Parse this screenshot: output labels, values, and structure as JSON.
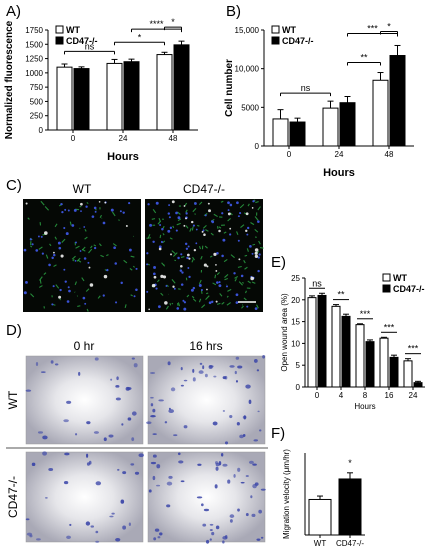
{
  "panels": {
    "A": "A)",
    "B": "B)",
    "C": "C)",
    "D": "D)",
    "E": "E)",
    "F": "F)"
  },
  "colors": {
    "wt_fill": "#ffffff",
    "ko_fill": "#000000",
    "stroke": "#000000",
    "scratch_bg": "#c9c9d2",
    "scratch_cell": "#3a45a8",
    "fluor_bg": "#050805",
    "fluor_green": "#2fb34a",
    "fluor_blue": "#3a52d6"
  },
  "panel_C": {
    "wt_label": "WT",
    "ko_label": "CD47-/-"
  },
  "panel_D": {
    "col_0": "0 hr",
    "col_16": "16 hrs",
    "row_wt": "WT",
    "row_ko": "CD47-/-"
  },
  "chart_data": [
    {
      "id": "A",
      "type": "bar",
      "ylabel": "Normalized fluorescence",
      "xlabel": "Hours",
      "categories": [
        "0",
        "24",
        "48"
      ],
      "ylim": [
        0,
        1750
      ],
      "yticks": [
        0,
        250,
        500,
        750,
        1000,
        1250,
        1500,
        1750
      ],
      "series": [
        {
          "name": "WT",
          "values": [
            1100,
            1165,
            1320
          ],
          "errors": [
            55,
            70,
            40
          ]
        },
        {
          "name": "CD47-/-",
          "values": [
            1075,
            1195,
            1490
          ],
          "errors": [
            30,
            45,
            65
          ]
        }
      ],
      "legend": "top-left",
      "annotations": [
        {
          "text": "ns",
          "from": "0-WT",
          "to": "24-WT"
        },
        {
          "text": "*",
          "from": "24-WT",
          "to": "48-WT"
        },
        {
          "text": "****",
          "from": "24-CD47-/-",
          "to": "48-CD47-/-"
        },
        {
          "text": "*",
          "from": "48-WT",
          "to": "48-CD47-/-"
        }
      ]
    },
    {
      "id": "B",
      "type": "bar",
      "ylabel": "Cell number",
      "xlabel": "Hours",
      "categories": [
        "0",
        "24",
        "48"
      ],
      "ylim": [
        0,
        15000
      ],
      "yticks": [
        0,
        5000,
        10000,
        15000
      ],
      "ytick_labels": [
        "0",
        "5000",
        "10,000",
        "15,000"
      ],
      "series": [
        {
          "name": "WT",
          "values": [
            3500,
            4900,
            8500
          ],
          "errors": [
            1200,
            900,
            1000
          ]
        },
        {
          "name": "CD47-/-",
          "values": [
            3100,
            5600,
            11700
          ],
          "errors": [
            500,
            800,
            1300
          ]
        }
      ],
      "legend": "top-left",
      "annotations": [
        {
          "text": "ns",
          "from": "0-WT",
          "to": "24-WT"
        },
        {
          "text": "**",
          "from": "24-CD47-/-",
          "to": "48-WT"
        },
        {
          "text": "***",
          "from": "24-CD47-/-",
          "to": "48-CD47-/-"
        },
        {
          "text": "*",
          "from": "48-WT",
          "to": "48-CD47-/-"
        }
      ]
    },
    {
      "id": "E",
      "type": "bar",
      "ylabel": "Open wound area (%)",
      "xlabel": "Hours",
      "categories": [
        "0",
        "4",
        "8",
        "16",
        "24"
      ],
      "ylim": [
        0,
        25
      ],
      "yticks": [
        0,
        5,
        10,
        15,
        20,
        25
      ],
      "series": [
        {
          "name": "WT",
          "values": [
            20.5,
            18.5,
            14.3,
            11.2,
            6.0
          ],
          "errors": [
            0.4,
            0.4,
            0.2,
            0.2,
            0.5
          ]
        },
        {
          "name": "CD47-/-",
          "values": [
            21.0,
            16.2,
            10.4,
            6.8,
            1.0
          ],
          "errors": [
            0.5,
            0.5,
            0.4,
            0.5,
            0.3
          ]
        }
      ],
      "legend": "top-right",
      "annotations": [
        {
          "text": "ns",
          "category": "0"
        },
        {
          "text": "**",
          "category": "4"
        },
        {
          "text": "***",
          "category": "8"
        },
        {
          "text": "***",
          "category": "16"
        },
        {
          "text": "***",
          "category": "24"
        }
      ]
    },
    {
      "id": "F",
      "type": "bar",
      "ylabel": "Migration velocity (μm/hr)",
      "xlabel": "",
      "categories": [
        "WT",
        "CD47-/-"
      ],
      "ylim": [
        0,
        60
      ],
      "series": [
        {
          "name": "",
          "values": [
            26,
            41
          ],
          "errors": [
            2.5,
            4.5
          ]
        }
      ],
      "annotations": [
        {
          "text": "*",
          "category": "CD47-/-"
        }
      ]
    }
  ]
}
